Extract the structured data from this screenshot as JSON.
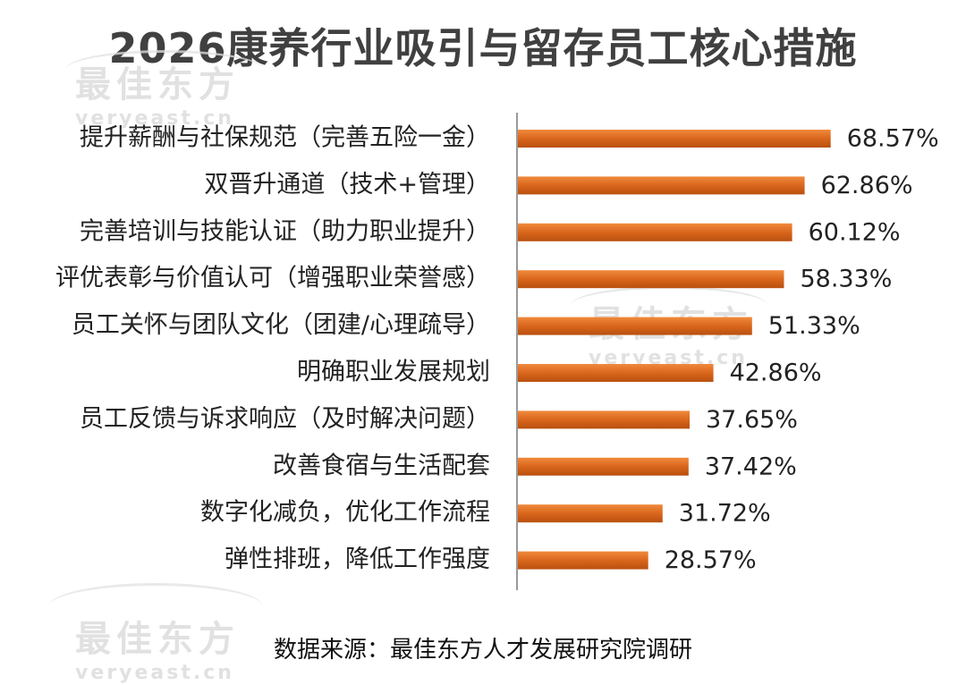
{
  "chart_data": {
    "type": "bar",
    "orientation": "horizontal",
    "title": "2026康养行业吸引与留存员工核心措施",
    "categories": [
      "提升薪酬与社保规范（完善五险一金）",
      "双晋升通道（技术+管理）",
      "完善培训与技能认证（助力职业提升）",
      "评优表彰与价值认可（增强职业荣誉感）",
      "员工关怀与团队文化（团建/心理疏导）",
      "明确职业发展规划",
      "员工反馈与诉求响应（及时解决问题）",
      "改善食宿与生活配套",
      "数字化减负，优化工作流程",
      "弹性排班，降低工作强度"
    ],
    "values": [
      68.57,
      62.86,
      60.12,
      58.33,
      51.33,
      42.86,
      37.65,
      37.42,
      31.72,
      28.57
    ],
    "value_labels": [
      "68.57%",
      "62.86%",
      "60.12%",
      "58.33%",
      "51.33%",
      "42.86%",
      "37.65%",
      "37.42%",
      "31.72%",
      "28.57%"
    ],
    "xlim": [
      0,
      80
    ],
    "grid": false,
    "legend": "none",
    "bar_color": "#d9661c"
  },
  "watermark": {
    "cn": "最佳东方",
    "en": "veryeast.cn"
  },
  "source": "数据来源：最佳东方人才发展研究院调研"
}
